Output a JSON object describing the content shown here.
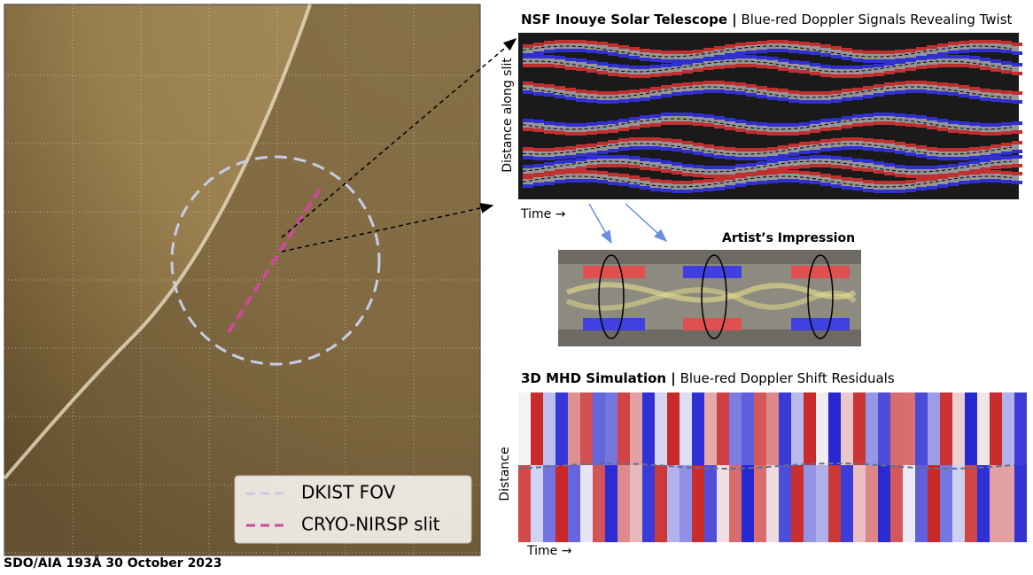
{
  "left_panel": {
    "caption": "SDO/AIA 193Å  30 October 2023",
    "legend": [
      "DKIST FOV",
      "CRYO-NIRSP slit"
    ]
  },
  "dkist_panel": {
    "title": "NSF Inouye Solar Telescope |",
    "subtitle": "Blue-red Doppler  Signals Revealing Twist",
    "y_label": "Distance along slit",
    "x_label": "Time →"
  },
  "artist_panel": {
    "title": "Artist’s Impression"
  },
  "simulation_panel": {
    "title": "3D MHD Simulation |",
    "subtitle": "Blue-red Doppler Shift Residuals",
    "y_label": "Distance",
    "x_label": "Time →"
  }
}
